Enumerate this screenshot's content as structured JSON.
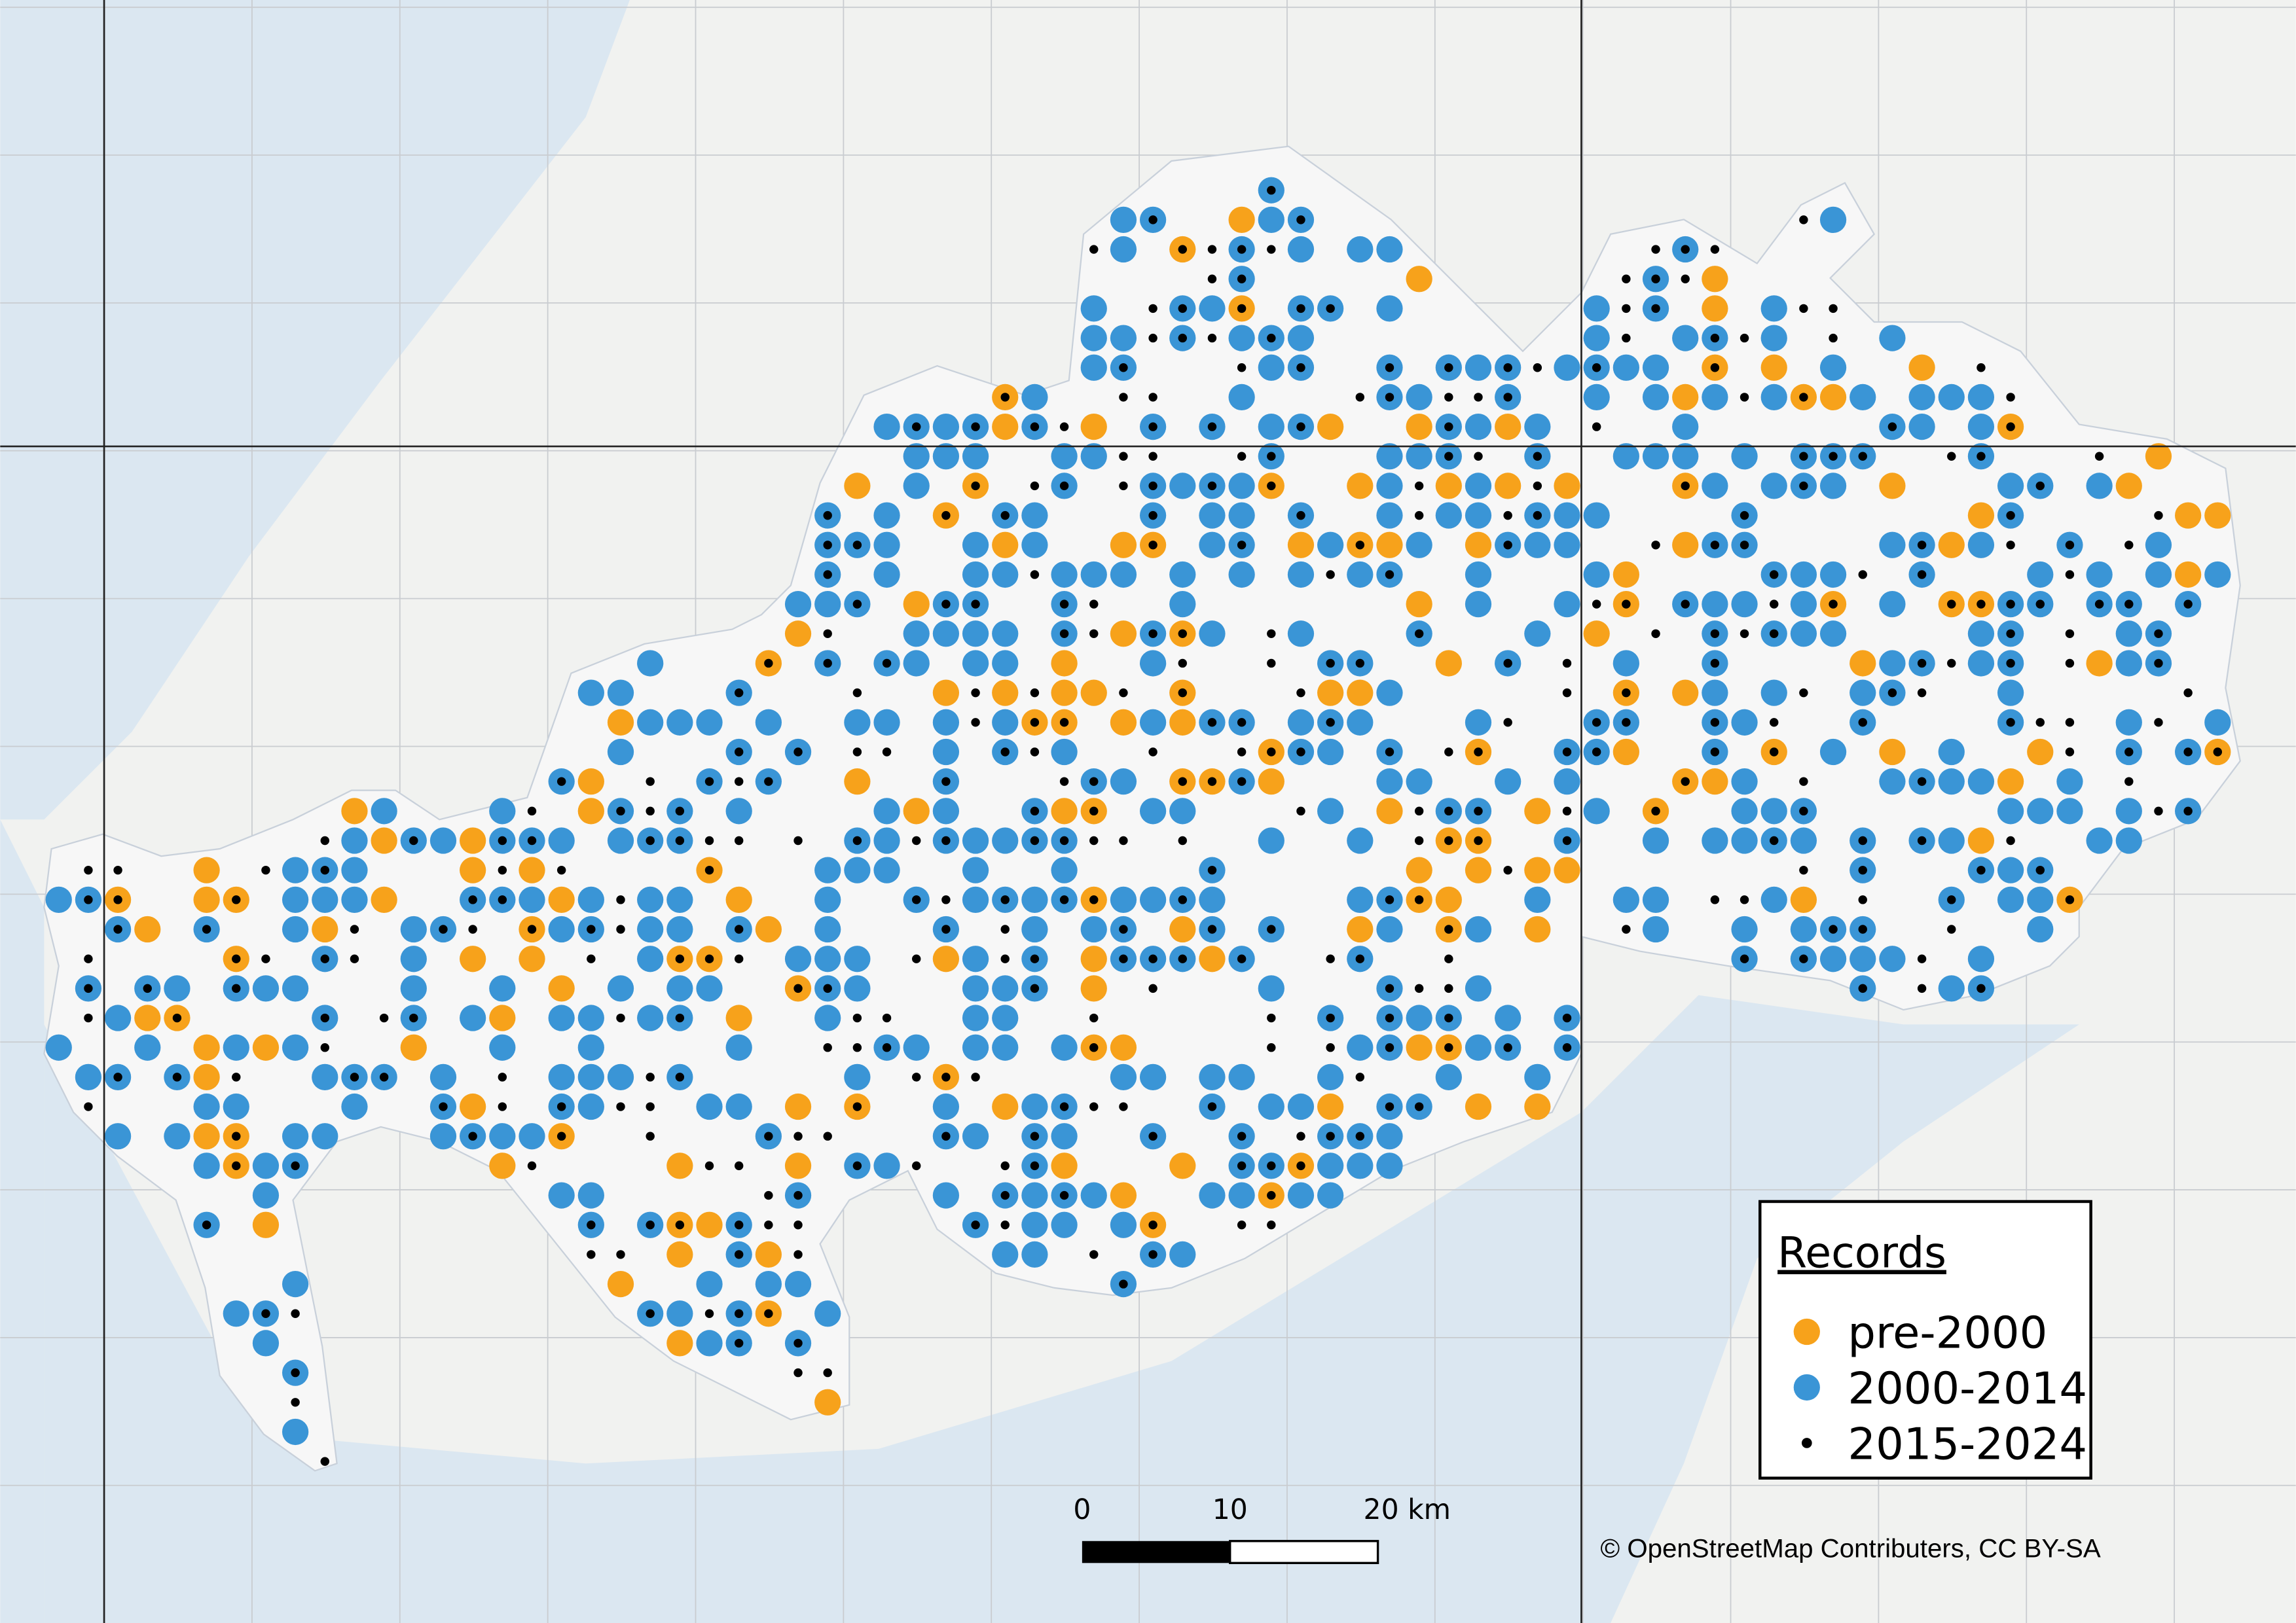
{
  "legend": {
    "title": "Records",
    "items": [
      {
        "label": "pre-2000",
        "color": "#f7a21b"
      },
      {
        "label": "2000-2014",
        "color": "#3a95d6"
      },
      {
        "label": "2015-2024",
        "color": "#000000"
      }
    ]
  },
  "scale_bar": {
    "labels": [
      "0",
      "10",
      "20 km"
    ]
  },
  "attribution": "© OpenStreetMap Contributers, CC BY-SA"
}
